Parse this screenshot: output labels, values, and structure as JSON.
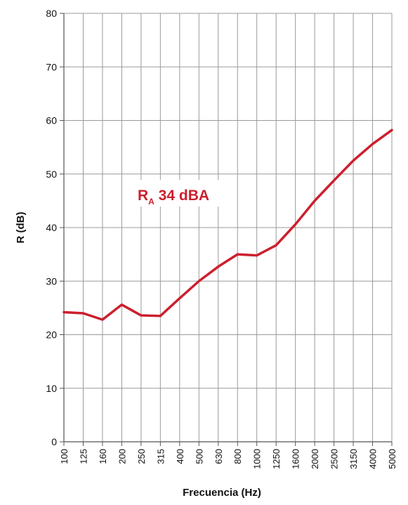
{
  "chart_data": {
    "type": "line",
    "xlabel": "Frecuencia (Hz)",
    "ylabel": "R (dB)",
    "categories": [
      "100",
      "125",
      "160",
      "200",
      "250",
      "315",
      "400",
      "500",
      "630",
      "800",
      "1000",
      "1250",
      "1600",
      "2000",
      "2500",
      "3150",
      "4000",
      "5000"
    ],
    "series": [
      {
        "values": [
          24.2,
          24.0,
          22.8,
          25.6,
          23.6,
          23.5,
          26.8,
          30.0,
          32.7,
          35.0,
          34.8,
          36.7,
          40.6,
          45.0,
          48.8,
          52.5,
          55.6,
          58.2
        ]
      }
    ],
    "ylim": [
      0,
      80
    ],
    "yticks": [
      0,
      10,
      20,
      30,
      40,
      50,
      60,
      70,
      80
    ],
    "grid": true,
    "line_color": "#cc1f2e",
    "annotation": {
      "main": "R",
      "sub": "A",
      "rest": " 34 dBA"
    }
  }
}
